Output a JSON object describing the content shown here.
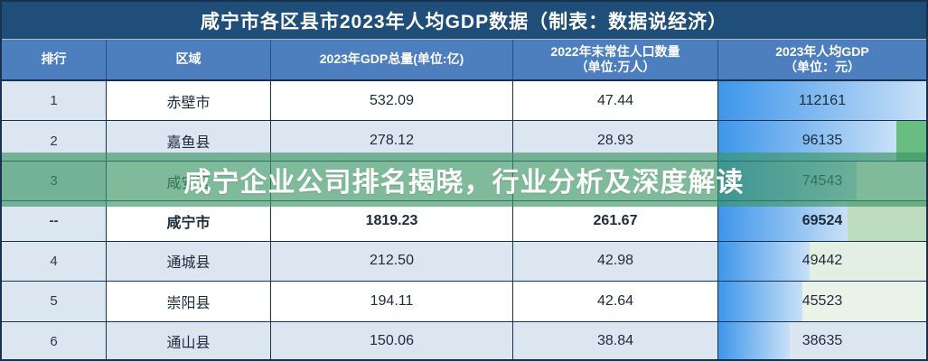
{
  "title": "咸宁市各区县市2023年人均GDP数据（制表：数据说经济）",
  "watermark": {
    "banner_text": "咸宁企业公司排名揭晓，行业分析及深度解读",
    "banner_color": "#3D9767",
    "banner_opacity": 0.66,
    "banner_text_color": "#FFFFFF"
  },
  "colors": {
    "title_bg": "#1F4E79",
    "header_bg": "#4D7EBD",
    "shaded_row_bg": "#DCE6F1",
    "rank_column_bg": "#DCE6F1",
    "bar_gradient_start": "#3E96EA",
    "bar_gradient_end": "#C9E0F7",
    "grid_border": "#17314F"
  },
  "table": {
    "bar_max": 112161,
    "columns": [
      {
        "lines": [
          "排行"
        ]
      },
      {
        "lines": [
          "区域"
        ]
      },
      {
        "lines": [
          "2023年GDP总量(单位:亿)"
        ]
      },
      {
        "lines": [
          "2022年末常住人口数量",
          "（单位:万人）"
        ]
      },
      {
        "lines": [
          "2023年人均GDP",
          "（单位：元）"
        ]
      }
    ],
    "rows": [
      {
        "rank": "1",
        "region": "赤壁市",
        "gdp": "532.09",
        "population": "47.44",
        "per_capita": "112161",
        "shaded": false,
        "bold": false,
        "tint": null
      },
      {
        "rank": "2",
        "region": "嘉鱼县",
        "gdp": "278.12",
        "population": "28.93",
        "per_capita": "96135",
        "shaded": true,
        "bold": false,
        "tint": "#69BD80"
      },
      {
        "rank": "3",
        "region": "咸安区",
        "gdp": "",
        "population": "",
        "per_capita": "74543",
        "shaded": false,
        "bold": false,
        "tint": null
      },
      {
        "rank": "--",
        "region": "咸宁市",
        "gdp": "1819.23",
        "population": "261.67",
        "per_capita": "69524",
        "shaded": false,
        "bold": true,
        "tint": "#BEDCC0"
      },
      {
        "rank": "4",
        "region": "通城县",
        "gdp": "212.50",
        "population": "42.98",
        "per_capita": "49442",
        "shaded": true,
        "bold": false,
        "tint": "#E2EFE2"
      },
      {
        "rank": "5",
        "region": "崇阳县",
        "gdp": "194.11",
        "population": "42.64",
        "per_capita": "45523",
        "shaded": false,
        "bold": false,
        "tint": "#E9F3EA"
      },
      {
        "rank": "6",
        "region": "通山县",
        "gdp": "150.06",
        "population": "38.84",
        "per_capita": "38635",
        "shaded": true,
        "bold": false,
        "tint": null
      }
    ]
  },
  "chart_data": {
    "type": "table",
    "title": "咸宁市各区县市2023年人均GDP数据（制表：数据说经济）",
    "columns": [
      "排行",
      "区域",
      "2023年GDP总量(单位:亿)",
      "2022年末常住人口数量（单位:万人）",
      "2023年人均GDP（单位：元）"
    ],
    "rows": [
      [
        "1",
        "赤壁市",
        532.09,
        47.44,
        112161
      ],
      [
        "2",
        "嘉鱼县",
        278.12,
        28.93,
        96135
      ],
      [
        "3",
        "咸安区",
        null,
        null,
        74543
      ],
      [
        "--",
        "咸宁市",
        1819.23,
        261.67,
        69524
      ],
      [
        "4",
        "通城县",
        212.5,
        42.98,
        49442
      ],
      [
        "5",
        "崇阳县",
        194.11,
        42.64,
        45523
      ],
      [
        "6",
        "通山县",
        150.06,
        38.84,
        38635
      ]
    ],
    "bar_column": "2023年人均GDP（单位：元）",
    "bar_scale_max": 112161,
    "notes": "last column rendered as proportional blue gradient data bars; rows 3 GDP/population obscured by watermark banner"
  }
}
